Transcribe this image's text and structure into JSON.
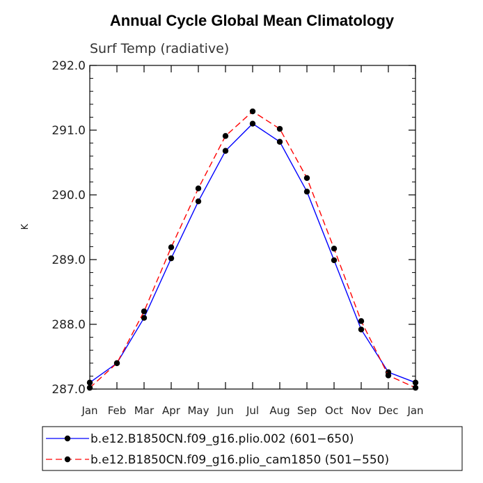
{
  "chart_data": {
    "type": "line",
    "title": "Annual Cycle Global Mean Climatology",
    "subtitle": "Surf Temp (radiative)",
    "xlabel": "",
    "ylabel": "K",
    "categories": [
      "Jan",
      "Feb",
      "Mar",
      "Apr",
      "May",
      "Jun",
      "Jul",
      "Aug",
      "Sep",
      "Oct",
      "Nov",
      "Dec",
      "Jan"
    ],
    "ylim": [
      287.0,
      292.0
    ],
    "yticks": [
      "287.0",
      "288.0",
      "289.0",
      "290.0",
      "291.0",
      "292.0"
    ],
    "grid": false,
    "legend_position": "bottom",
    "series": [
      {
        "name": "b.e12.B1850CN.f09_g16.plio.002 (601−650)",
        "color": "#0000ff",
        "dash": "solid",
        "values": [
          287.1,
          287.4,
          288.1,
          289.02,
          289.9,
          290.68,
          291.1,
          290.82,
          290.05,
          288.99,
          287.92,
          287.26,
          287.1
        ]
      },
      {
        "name": "b.e12.B1850CN.f09_g16.plio_cam1850 (501−550)",
        "color": "#ff0000",
        "dash": "dashed",
        "values": [
          287.02,
          287.4,
          288.2,
          289.19,
          290.1,
          290.91,
          291.29,
          291.02,
          290.26,
          289.17,
          288.05,
          287.21,
          287.02
        ]
      }
    ]
  }
}
